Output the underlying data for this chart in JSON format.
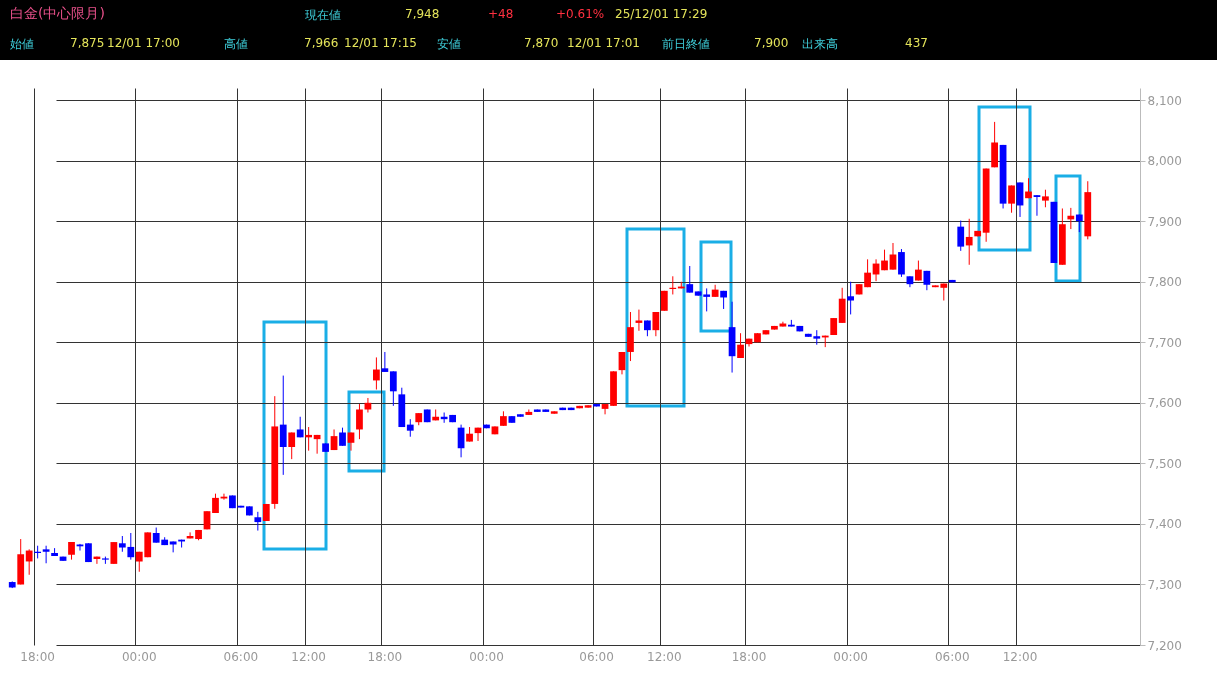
{
  "chart_data": {
    "type": "candlestick",
    "title": "白金(中心限月)",
    "annotations": [
      "現在値",
      "7,948",
      "+48",
      "+0.61%",
      "25/12/01  17:29",
      "始値",
      "7,875",
      "12/01  17:00",
      "高値",
      "7,966",
      "12/01  17:15",
      "安値",
      "7,870",
      "12/01  17:01",
      "前日終値",
      "7,900",
      "出来高",
      "437"
    ],
    "categories": [
      null,
      null,
      null,
      "18:00",
      null,
      null,
      null,
      null,
      null,
      null,
      null,
      null,
      null,
      null,
      null,
      "00:00",
      null,
      null,
      null,
      null,
      null,
      null,
      null,
      null,
      null,
      null,
      null,
      "06:00",
      null,
      null,
      null,
      null,
      null,
      null,
      null,
      "12:00",
      null,
      null,
      null,
      null,
      null,
      null,
      null,
      null,
      "18:00",
      null,
      null,
      null,
      null,
      null,
      null,
      null,
      null,
      null,
      null,
      null,
      "00:00",
      null,
      null,
      null,
      null,
      null,
      null,
      null,
      null,
      null,
      null,
      null,
      null,
      "06:00",
      null,
      null,
      null,
      null,
      null,
      null,
      null,
      "12:00",
      null,
      null,
      null,
      null,
      null,
      null,
      null,
      null,
      null,
      "18:00",
      null,
      null,
      null,
      null,
      null,
      null,
      null,
      null,
      null,
      null,
      null,
      "00:00",
      null,
      null,
      null,
      null,
      null,
      null,
      null,
      null,
      null,
      null,
      null,
      "06:00",
      null,
      null,
      null,
      null,
      null,
      null,
      null,
      "12:00",
      null,
      null,
      null,
      null,
      null,
      null,
      null,
      null
    ],
    "ohlc": [
      [
        7304,
        7305,
        7294,
        7295
      ],
      [
        7300,
        7375,
        7300,
        7350
      ],
      [
        7338,
        7358,
        7316,
        7356
      ],
      [
        7354,
        7364,
        7343,
        7352
      ],
      [
        7358,
        7364,
        7335,
        7354
      ],
      [
        7352,
        7360,
        7347,
        7347
      ],
      [
        7346,
        7346,
        7339,
        7339
      ],
      [
        7349,
        7370,
        7341,
        7370
      ],
      [
        7366,
        7367,
        7356,
        7363
      ],
      [
        7368,
        7368,
        7337,
        7337
      ],
      [
        7342,
        7346,
        7334,
        7346
      ],
      [
        7343,
        7346,
        7334,
        7341
      ],
      [
        7334,
        7370,
        7334,
        7370
      ],
      [
        7368,
        7380,
        7354,
        7361
      ],
      [
        7362,
        7385,
        7341,
        7345
      ],
      [
        7338,
        7354,
        7321,
        7354
      ],
      [
        7345,
        7386,
        7345,
        7386
      ],
      [
        7385,
        7394,
        7369,
        7369
      ],
      [
        7374,
        7378,
        7365,
        7365
      ],
      [
        7371,
        7371,
        7353,
        7366
      ],
      [
        7374,
        7374,
        7361,
        7371
      ],
      [
        7376,
        7386,
        7376,
        7380
      ],
      [
        7375,
        7390,
        7373,
        7390
      ],
      [
        7391,
        7421,
        7391,
        7421
      ],
      [
        7418,
        7450,
        7418,
        7443
      ],
      [
        7442,
        7450,
        7440,
        7445
      ],
      [
        7447,
        7447,
        7426,
        7426
      ],
      [
        7430,
        7430,
        7427,
        7427
      ],
      [
        7429,
        7429,
        7414,
        7414
      ],
      [
        7411,
        7420,
        7389,
        7403
      ],
      [
        7405,
        7433,
        7405,
        7433
      ],
      [
        7433,
        7611,
        7425,
        7561
      ],
      [
        7564,
        7645,
        7481,
        7527
      ],
      [
        7527,
        7551,
        7507,
        7551
      ],
      [
        7556,
        7577,
        7543,
        7543
      ],
      [
        7543,
        7560,
        7521,
        7547
      ],
      [
        7540,
        7547,
        7516,
        7547
      ],
      [
        7533,
        7533,
        7519,
        7519
      ],
      [
        7522,
        7556,
        7522,
        7545
      ],
      [
        7551,
        7559,
        7529,
        7529
      ],
      [
        7534,
        7551,
        7521,
        7551
      ],
      [
        7556,
        7598,
        7540,
        7589
      ],
      [
        7589,
        7608,
        7584,
        7600
      ],
      [
        7637,
        7675,
        7622,
        7655
      ],
      [
        7657,
        7684,
        7651,
        7651
      ],
      [
        7652,
        7652,
        7595,
        7619
      ],
      [
        7614,
        7625,
        7560,
        7560
      ],
      [
        7564,
        7573,
        7544,
        7554
      ],
      [
        7568,
        7583,
        7563,
        7583
      ],
      [
        7589,
        7589,
        7568,
        7568
      ],
      [
        7571,
        7589,
        7571,
        7577
      ],
      [
        7577,
        7584,
        7567,
        7573
      ],
      [
        7580,
        7580,
        7568,
        7568
      ],
      [
        7559,
        7564,
        7510,
        7525
      ],
      [
        7536,
        7560,
        7536,
        7549
      ],
      [
        7550,
        7559,
        7537,
        7559
      ],
      [
        7564,
        7564,
        7558,
        7558
      ],
      [
        7548,
        7561,
        7548,
        7561
      ],
      [
        7562,
        7586,
        7562,
        7578
      ],
      [
        7578,
        7578,
        7567,
        7567
      ],
      [
        7581,
        7581,
        7577,
        7577
      ],
      [
        7580,
        7589,
        7580,
        7585
      ],
      [
        7589,
        7589,
        7585,
        7585
      ],
      [
        7589,
        7589,
        7585,
        7585
      ],
      [
        7582,
        7586,
        7582,
        7586
      ],
      [
        7592,
        7592,
        7588,
        7588
      ],
      [
        7592,
        7592,
        7588,
        7588
      ],
      [
        7591,
        7595,
        7591,
        7595
      ],
      [
        7592,
        7596,
        7592,
        7596
      ],
      [
        7598,
        7598,
        7594,
        7594
      ],
      [
        7590,
        7598,
        7581,
        7598
      ],
      [
        7595,
        7652,
        7595,
        7652
      ],
      [
        7654,
        7684,
        7647,
        7684
      ],
      [
        7684,
        7750,
        7669,
        7725
      ],
      [
        7732,
        7754,
        7719,
        7736
      ],
      [
        7736,
        7736,
        7710,
        7720
      ],
      [
        7720,
        7750,
        7710,
        7750
      ],
      [
        7752,
        7785,
        7752,
        7785
      ],
      [
        7788,
        7809,
        7779,
        7790
      ],
      [
        7789,
        7800,
        7789,
        7792
      ],
      [
        7796,
        7826,
        7782,
        7782
      ],
      [
        7784,
        7784,
        7777,
        7777
      ],
      [
        7779,
        7789,
        7751,
        7775
      ],
      [
        7775,
        7795,
        7775,
        7787
      ],
      [
        7785,
        7785,
        7755,
        7774
      ],
      [
        7725,
        7767,
        7650,
        7677
      ],
      [
        7674,
        7715,
        7674,
        7696
      ],
      [
        7697,
        7706,
        7693,
        7706
      ],
      [
        7700,
        7715,
        7700,
        7715
      ],
      [
        7713,
        7720,
        7713,
        7720
      ],
      [
        7721,
        7727,
        7721,
        7727
      ],
      [
        7726,
        7734,
        7726,
        7731
      ],
      [
        7729,
        7737,
        7726,
        7726
      ],
      [
        7727,
        7727,
        7718,
        7718
      ],
      [
        7714,
        7714,
        7709,
        7709
      ],
      [
        7710,
        7720,
        7696,
        7706
      ],
      [
        7708,
        7711,
        7692,
        7711
      ],
      [
        7712,
        7740,
        7712,
        7740
      ],
      [
        7732,
        7790,
        7732,
        7772
      ],
      [
        7776,
        7800,
        7746,
        7769
      ],
      [
        7779,
        7796,
        7779,
        7796
      ],
      [
        7791,
        7837,
        7791,
        7815
      ],
      [
        7812,
        7837,
        7801,
        7830
      ],
      [
        7819,
        7853,
        7819,
        7835
      ],
      [
        7820,
        7864,
        7820,
        7845
      ],
      [
        7849,
        7854,
        7808,
        7812
      ],
      [
        7809,
        7809,
        7791,
        7796
      ],
      [
        7802,
        7835,
        7802,
        7820
      ],
      [
        7818,
        7818,
        7786,
        7795
      ],
      [
        7791,
        7794,
        7791,
        7794
      ],
      [
        7790,
        7797,
        7769,
        7797
      ],
      [
        7803,
        7803,
        7799,
        7799
      ],
      [
        7891,
        7901,
        7851,
        7858
      ],
      [
        7860,
        7904,
        7828,
        7874
      ],
      [
        7875,
        7884,
        7875,
        7884
      ],
      [
        7881,
        7987,
        7866,
        7987
      ],
      [
        7989,
        8064,
        7989,
        8030
      ],
      [
        8026,
        8026,
        7921,
        7929
      ],
      [
        7929,
        7959,
        7914,
        7959
      ],
      [
        7964,
        7964,
        7907,
        7926
      ],
      [
        7938,
        7971,
        7938,
        7949
      ],
      [
        7943,
        7943,
        7909,
        7940
      ],
      [
        7934,
        7952,
        7923,
        7941
      ],
      [
        7932,
        7932,
        7831,
        7831
      ],
      [
        7828,
        7921,
        7828,
        7895
      ],
      [
        7903,
        7922,
        7887,
        7909
      ],
      [
        7911,
        7911,
        7882,
        7900
      ],
      [
        7875,
        7966,
        7870,
        7948
      ]
    ],
    "colors": [
      "#0000ff",
      "#ff0000",
      "#ff0000",
      "#0000ff",
      "#0000ff",
      "#0000ff",
      "#0000ff",
      "#ff0000",
      "#0000ff",
      "#0000ff",
      "#ff0000",
      "#0000ff",
      "#ff0000",
      "#0000ff",
      "#0000ff",
      "#ff0000",
      "#ff0000",
      "#0000ff",
      "#0000ff",
      "#0000ff",
      "#0000ff",
      "#ff0000",
      "#ff0000",
      "#ff0000",
      "#ff0000",
      "#ff0000",
      "#0000ff",
      "#0000ff",
      "#0000ff",
      "#0000ff",
      "#ff0000",
      "#ff0000",
      "#0000ff",
      "#ff0000",
      "#0000ff",
      "#ff0000",
      "#ff0000",
      "#0000ff",
      "#ff0000",
      "#0000ff",
      "#ff0000",
      "#ff0000",
      "#ff0000",
      "#ff0000",
      "#0000ff",
      "#0000ff",
      "#0000ff",
      "#0000ff",
      "#ff0000",
      "#0000ff",
      "#ff0000",
      "#0000ff",
      "#0000ff",
      "#0000ff",
      "#ff0000",
      "#ff0000",
      "#0000ff",
      "#ff0000",
      "#ff0000",
      "#0000ff",
      "#0000ff",
      "#ff0000",
      "#0000ff",
      "#0000ff",
      "#ff0000",
      "#0000ff",
      "#0000ff",
      "#ff0000",
      "#ff0000",
      "#0000ff",
      "#ff0000",
      "#ff0000",
      "#ff0000",
      "#ff0000",
      "#ff0000",
      "#0000ff",
      "#ff0000",
      "#ff0000",
      "#ff0000",
      "#ff0000",
      "#0000ff",
      "#0000ff",
      "#0000ff",
      "#ff0000",
      "#0000ff",
      "#0000ff",
      "#ff0000",
      "#ff0000",
      "#ff0000",
      "#ff0000",
      "#ff0000",
      "#ff0000",
      "#0000ff",
      "#0000ff",
      "#0000ff",
      "#0000ff",
      "#ff0000",
      "#ff0000",
      "#ff0000",
      "#0000ff",
      "#ff0000",
      "#ff0000",
      "#ff0000",
      "#ff0000",
      "#ff0000",
      "#0000ff",
      "#0000ff",
      "#ff0000",
      "#0000ff",
      "#ff0000",
      "#ff0000",
      "#0000ff",
      "#0000ff",
      "#ff0000",
      "#ff0000",
      "#ff0000",
      "#ff0000",
      "#0000ff",
      "#ff0000",
      "#0000ff",
      "#ff0000",
      "#0000ff",
      "#ff0000",
      "#0000ff",
      "#ff0000",
      "#ff0000",
      "#0000ff",
      "#ff0000"
    ],
    "ylim": [
      7200,
      8120
    ],
    "yticks": [
      {
        "value": 7200,
        "label": "7,200"
      },
      {
        "value": 7300,
        "label": "7,300"
      },
      {
        "value": 7400,
        "label": "7,400"
      },
      {
        "value": 7500,
        "label": "7,500"
      },
      {
        "value": 7600,
        "label": "7,600"
      },
      {
        "value": 7700,
        "label": "7,700"
      },
      {
        "value": 7800,
        "label": "7,800"
      },
      {
        "value": 7900,
        "label": "7,900"
      },
      {
        "value": 8000,
        "label": "8,000"
      },
      {
        "value": 8100,
        "label": "8,100"
      }
    ],
    "grid": true
  }
}
